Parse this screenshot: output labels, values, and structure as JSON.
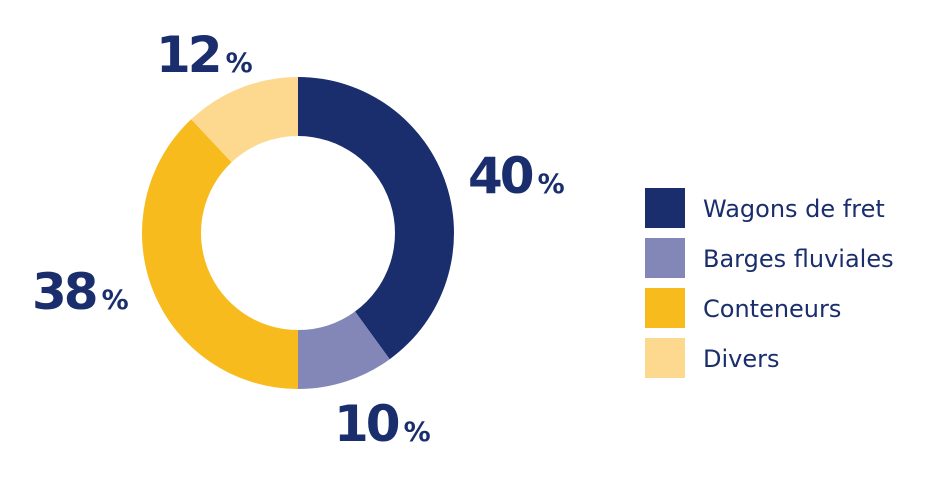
{
  "chart_data": {
    "type": "pie",
    "variant": "donut",
    "categories": [
      "Wagons de fret",
      "Barges fluviales",
      "Conteneurs",
      "Divers"
    ],
    "values": [
      40,
      10,
      38,
      12
    ],
    "colors": [
      "#1a2e6e",
      "#8387b8",
      "#f8bb1e",
      "#fdd98f"
    ],
    "data_labels": [
      {
        "number": "40",
        "unit": "%"
      },
      {
        "number": "10",
        "unit": "%"
      },
      {
        "number": "38",
        "unit": "%"
      },
      {
        "number": "12",
        "unit": "%"
      }
    ],
    "legend": {
      "placement": "right",
      "entries": [
        "Wagons de fret",
        "Barges fluviales",
        "Conteneurs",
        "Divers"
      ]
    },
    "label_color": "#1a2e6e"
  }
}
